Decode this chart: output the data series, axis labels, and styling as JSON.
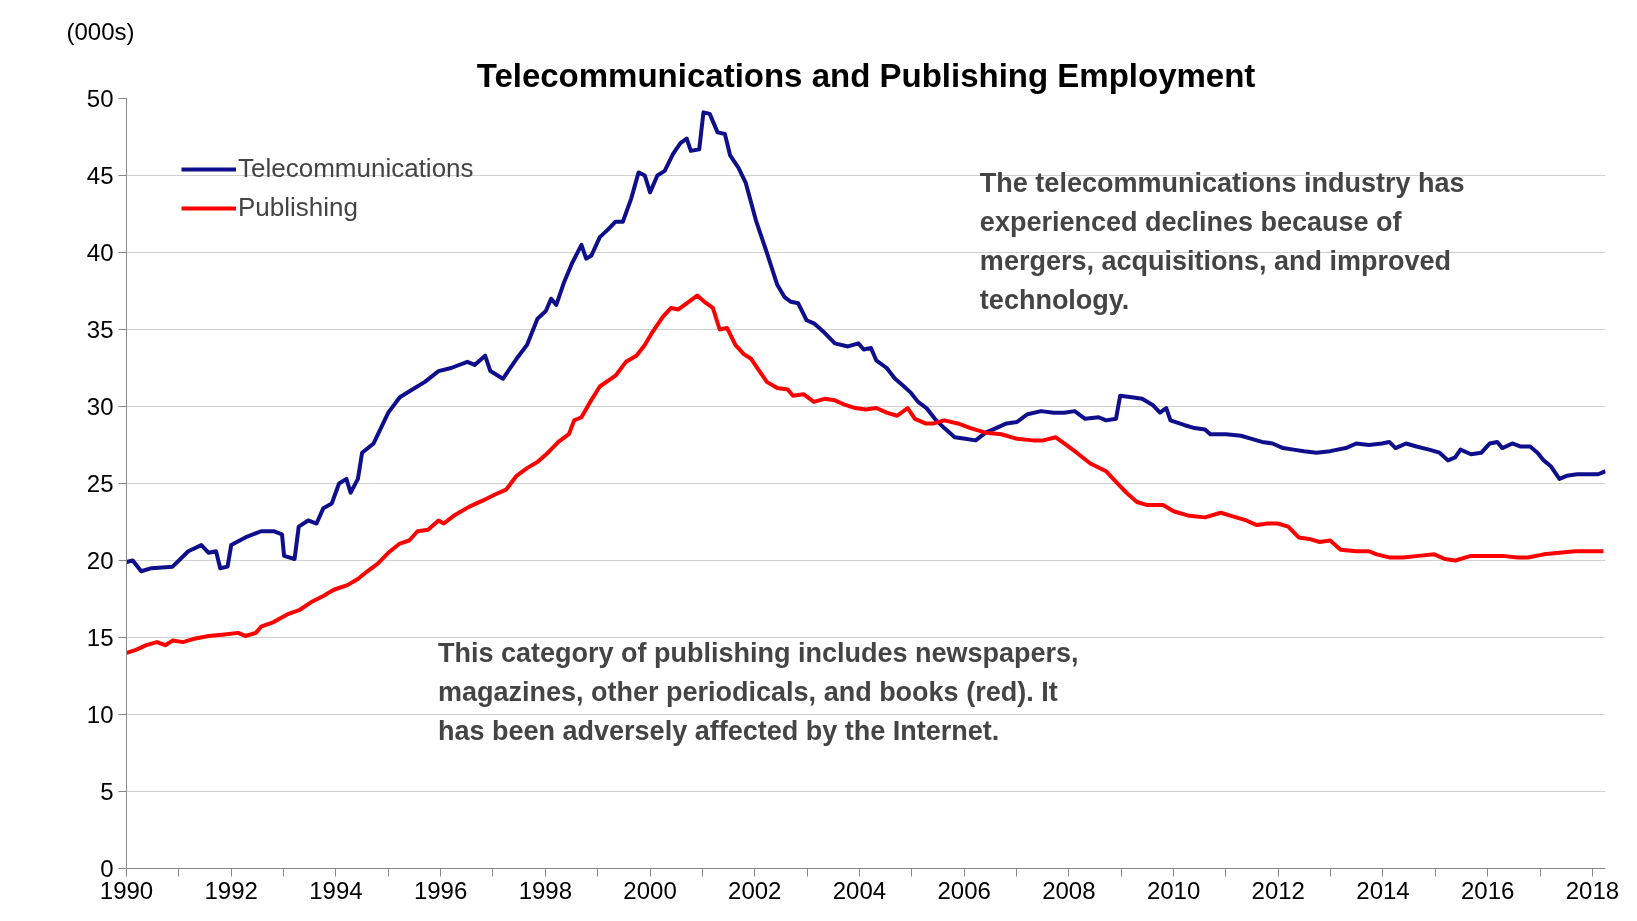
{
  "chart_data": {
    "type": "line",
    "title": "Telecommunications and Publishing Employment",
    "ylabel": "(000s)",
    "xlim": [
      1990,
      2018.25
    ],
    "ylim": [
      0,
      50
    ],
    "xticks": [
      1990,
      {
        "value": 1991,
        "label": null
      },
      1992,
      {
        "value": 1993,
        "label": null
      },
      1994,
      {
        "value": 1995,
        "label": null
      },
      1996,
      {
        "value": 1997,
        "label": null
      },
      1998,
      {
        "value": 1999,
        "label": null
      },
      2000,
      {
        "value": 2001,
        "label": null
      },
      2002,
      {
        "value": 2003,
        "label": null
      },
      2004,
      {
        "value": 2005,
        "label": null
      },
      2006,
      {
        "value": 2007,
        "label": null
      },
      2008,
      {
        "value": 2009,
        "label": null
      },
      2010,
      {
        "value": 2011,
        "label": null
      },
      2012,
      {
        "value": 2013,
        "label": null
      },
      2014,
      {
        "value": 2015,
        "label": null
      },
      2016,
      {
        "value": 2017,
        "label": null
      },
      2018
    ],
    "yticks": [
      0,
      5,
      10,
      15,
      20,
      25,
      30,
      35,
      40,
      45,
      50
    ],
    "grid": "y",
    "legend": "top left",
    "marker": "none",
    "line_style": "solid",
    "series": [
      {
        "name": "Telecommunications",
        "color": "#0f0f8c",
        "x": [
          1990.0,
          1990.12,
          1990.28,
          1990.48,
          1990.88,
          1991.18,
          1991.43,
          1991.57,
          1991.71,
          1991.79,
          1991.93,
          1992.0,
          1992.27,
          1992.57,
          1992.81,
          1992.97,
          1993.01,
          1993.21,
          1993.29,
          1993.47,
          1993.63,
          1993.76,
          1993.92,
          1994.06,
          1994.2,
          1994.28,
          1994.42,
          1994.5,
          1994.72,
          1995.0,
          1995.22,
          1995.46,
          1995.7,
          1995.96,
          1996.2,
          1996.51,
          1996.65,
          1996.85,
          1996.95,
          1997.19,
          1997.45,
          1997.65,
          1997.85,
          1998.01,
          1998.11,
          1998.21,
          1998.35,
          1998.51,
          1998.69,
          1998.78,
          1998.88,
          1999.04,
          1999.2,
          1999.34,
          1999.48,
          1999.64,
          1999.78,
          1999.9,
          2000.0,
          2000.14,
          2000.28,
          2000.44,
          2000.58,
          2000.7,
          2000.78,
          2000.94,
          2001.02,
          2001.14,
          2001.29,
          2001.43,
          2001.53,
          2001.69,
          2001.83,
          2002.03,
          2002.23,
          2002.43,
          2002.57,
          2002.69,
          2002.83,
          2002.99,
          2003.13,
          2003.33,
          2003.53,
          2003.78,
          2003.98,
          2004.08,
          2004.22,
          2004.32,
          2004.52,
          2004.68,
          2004.82,
          2004.98,
          2005.12,
          2005.28,
          2005.44,
          2005.62,
          2005.82,
          2006.02,
          2006.22,
          2006.41,
          2006.61,
          2006.81,
          2007.01,
          2007.21,
          2007.47,
          2007.71,
          2007.91,
          2008.11,
          2008.31,
          2008.57,
          2008.71,
          2008.9,
          2008.98,
          2009.2,
          2009.4,
          2009.6,
          2009.74,
          2009.86,
          2009.94,
          2010.2,
          2010.4,
          2010.6,
          2010.7,
          2011.0,
          2011.29,
          2011.49,
          2011.69,
          2011.89,
          2012.09,
          2012.29,
          2012.49,
          2012.73,
          2012.99,
          2013.29,
          2013.49,
          2013.73,
          2013.98,
          2014.12,
          2014.24,
          2014.44,
          2014.64,
          2014.88,
          2015.08,
          2015.24,
          2015.38,
          2015.48,
          2015.68,
          2015.88,
          2016.04,
          2016.18,
          2016.28,
          2016.47,
          2016.63,
          2016.81,
          2016.95,
          2017.07,
          2017.21,
          2017.37,
          2017.51,
          2017.71,
          2017.91,
          2018.11,
          2018.25
        ],
        "values": [
          19.9,
          20.0,
          19.3,
          19.5,
          19.6,
          20.6,
          21.0,
          20.5,
          20.6,
          19.5,
          19.6,
          21.0,
          21.5,
          21.9,
          21.9,
          21.7,
          20.3,
          20.1,
          22.2,
          22.6,
          22.4,
          23.4,
          23.7,
          25.0,
          25.3,
          24.4,
          25.3,
          27.0,
          27.6,
          29.6,
          30.6,
          31.1,
          31.6,
          32.3,
          32.5,
          32.9,
          32.7,
          33.3,
          32.3,
          31.8,
          33.1,
          34.0,
          35.7,
          36.2,
          37.0,
          36.6,
          38.0,
          39.3,
          40.5,
          39.6,
          39.8,
          41.0,
          41.5,
          42.0,
          42.0,
          43.5,
          45.2,
          45.0,
          43.9,
          45.0,
          45.3,
          46.4,
          47.1,
          47.4,
          46.6,
          46.7,
          49.1,
          49.0,
          47.8,
          47.7,
          46.3,
          45.5,
          44.5,
          42.0,
          40.0,
          37.9,
          37.1,
          36.8,
          36.7,
          35.6,
          35.4,
          34.8,
          34.1,
          33.9,
          34.1,
          33.7,
          33.8,
          33.0,
          32.5,
          31.8,
          31.4,
          30.9,
          30.3,
          29.9,
          29.2,
          28.6,
          28.0,
          27.9,
          27.8,
          28.3,
          28.6,
          28.9,
          29.0,
          29.5,
          29.7,
          29.6,
          29.6,
          29.7,
          29.2,
          29.3,
          29.1,
          29.2,
          30.7,
          30.6,
          30.5,
          30.1,
          29.6,
          29.9,
          29.1,
          28.8,
          28.6,
          28.5,
          28.2,
          28.2,
          28.1,
          27.9,
          27.7,
          27.6,
          27.3,
          27.2,
          27.1,
          27.0,
          27.1,
          27.3,
          27.6,
          27.5,
          27.6,
          27.7,
          27.3,
          27.6,
          27.4,
          27.2,
          27.0,
          26.5,
          26.7,
          27.2,
          26.9,
          27.0,
          27.6,
          27.7,
          27.3,
          27.6,
          27.4,
          27.4,
          27.0,
          26.5,
          26.1,
          25.3,
          25.5,
          25.6,
          25.6,
          25.6,
          25.8
        ]
      },
      {
        "name": "Publishing",
        "color": "#ff0000",
        "x": [
          1990.0,
          1990.18,
          1990.38,
          1990.58,
          1990.74,
          1990.88,
          1991.08,
          1991.27,
          1991.57,
          1991.87,
          1992.13,
          1992.27,
          1992.47,
          1992.57,
          1992.81,
          1993.07,
          1993.31,
          1993.53,
          1993.76,
          1993.96,
          1994.22,
          1994.42,
          1994.6,
          1994.8,
          1995.0,
          1995.22,
          1995.4,
          1995.56,
          1995.76,
          1995.96,
          1996.06,
          1996.25,
          1996.55,
          1996.81,
          1997.05,
          1997.25,
          1997.45,
          1997.65,
          1997.85,
          1998.05,
          1998.25,
          1998.45,
          1998.55,
          1998.69,
          1998.84,
          1999.04,
          1999.34,
          1999.54,
          1999.74,
          1999.9,
          2000.04,
          2000.24,
          2000.4,
          2000.54,
          2000.7,
          2000.9,
          2001.04,
          2001.2,
          2001.33,
          2001.47,
          2001.63,
          2001.79,
          2001.93,
          2002.09,
          2002.23,
          2002.43,
          2002.63,
          2002.73,
          2002.93,
          2003.13,
          2003.33,
          2003.53,
          2003.73,
          2003.92,
          2004.12,
          2004.32,
          2004.52,
          2004.72,
          2004.92,
          2005.06,
          2005.26,
          2005.42,
          2005.62,
          2005.88,
          2006.12,
          2006.41,
          2006.71,
          2007.01,
          2007.31,
          2007.51,
          2007.75,
          2007.91,
          2008.15,
          2008.41,
          2008.71,
          2008.9,
          2009.1,
          2009.3,
          2009.5,
          2009.8,
          2010.0,
          2010.3,
          2010.6,
          2010.9,
          2011.1,
          2011.39,
          2011.59,
          2011.79,
          2011.99,
          2012.19,
          2012.39,
          2012.59,
          2012.79,
          2012.99,
          2013.19,
          2013.49,
          2013.73,
          2013.88,
          2014.12,
          2014.38,
          2014.68,
          2014.98,
          2015.18,
          2015.38,
          2015.68,
          2015.98,
          2016.28,
          2016.57,
          2016.77,
          2017.07,
          2017.37,
          2017.67,
          2017.87,
          2018.07,
          2018.21
        ],
        "values": [
          14.0,
          14.2,
          14.5,
          14.7,
          14.5,
          14.8,
          14.7,
          14.9,
          15.1,
          15.2,
          15.3,
          15.1,
          15.3,
          15.7,
          16.0,
          16.5,
          16.8,
          17.3,
          17.7,
          18.1,
          18.4,
          18.8,
          19.3,
          19.8,
          20.5,
          21.1,
          21.3,
          21.9,
          22.0,
          22.6,
          22.4,
          22.9,
          23.5,
          23.9,
          24.3,
          24.6,
          25.5,
          26.0,
          26.4,
          27.0,
          27.7,
          28.2,
          29.1,
          29.3,
          30.2,
          31.3,
          32.0,
          32.9,
          33.3,
          34.0,
          34.8,
          35.8,
          36.4,
          36.3,
          36.7,
          37.2,
          36.8,
          36.4,
          35.0,
          35.1,
          34.0,
          33.4,
          33.1,
          32.3,
          31.6,
          31.2,
          31.1,
          30.7,
          30.8,
          30.3,
          30.5,
          30.4,
          30.1,
          29.9,
          29.8,
          29.9,
          29.6,
          29.4,
          29.9,
          29.2,
          28.9,
          28.9,
          29.1,
          28.9,
          28.6,
          28.3,
          28.2,
          27.9,
          27.8,
          27.8,
          28.0,
          27.6,
          27.0,
          26.3,
          25.8,
          25.1,
          24.4,
          23.8,
          23.6,
          23.6,
          23.2,
          22.9,
          22.8,
          23.1,
          22.9,
          22.6,
          22.3,
          22.4,
          22.4,
          22.2,
          21.5,
          21.4,
          21.2,
          21.3,
          20.7,
          20.6,
          20.6,
          20.4,
          20.2,
          20.2,
          20.3,
          20.4,
          20.1,
          20.0,
          20.3,
          20.3,
          20.3,
          20.2,
          20.2,
          20.4,
          20.5,
          20.6,
          20.6,
          20.6,
          20.6
        ]
      }
    ],
    "annotations": [
      "The telecommunications industry has experienced declines because of mergers, acquisitions, and improved technology.",
      "This category of publishing includes newspapers, magazines, other periodicals, and books (red). It has been adversely affected by the Internet."
    ]
  }
}
